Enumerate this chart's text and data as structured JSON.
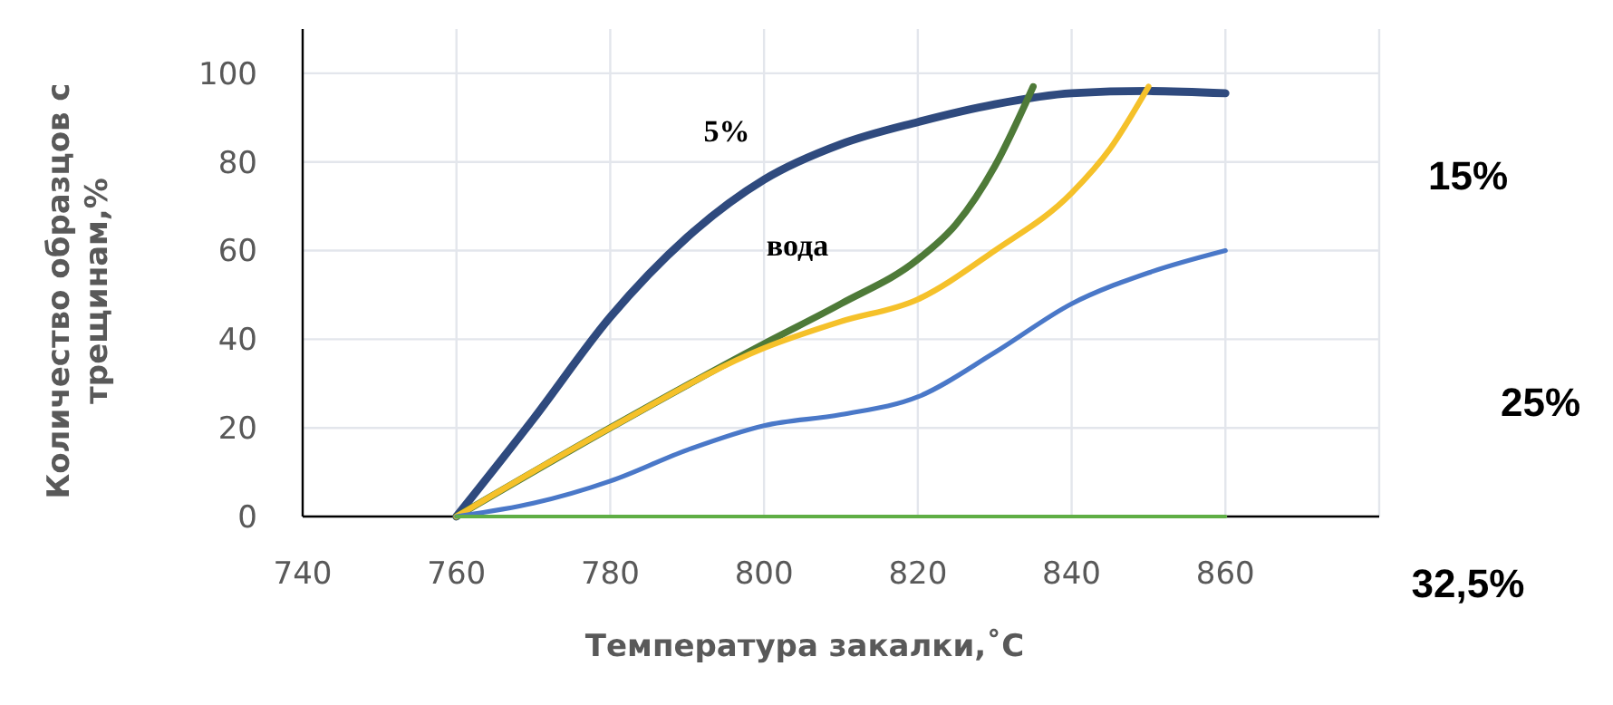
{
  "chart_data": {
    "type": "line",
    "xlabel": "Температура закалки,˚C",
    "ylabel": "Количество образцов с трещинам,%",
    "xlim": [
      740,
      880
    ],
    "ylim": [
      0,
      110
    ],
    "xticks": [
      740,
      760,
      780,
      800,
      820,
      840,
      860,
      {
        "value": 880,
        "label": null
      }
    ],
    "yticks": [
      0,
      20,
      40,
      60,
      80,
      100
    ],
    "grid": true,
    "marker": "none",
    "line_style": "solid",
    "series": [
      {
        "color": "#2f4a7e",
        "x": [
          760,
          770,
          780,
          790,
          800,
          810,
          820,
          830,
          840,
          850,
          860
        ],
        "values": [
          0,
          22,
          45,
          63,
          76,
          84,
          89,
          93,
          95.5,
          96,
          95.5
        ]
      },
      {
        "color": "#4e7a38",
        "x": [
          760,
          780,
          800,
          810,
          820,
          825,
          830,
          835
        ],
        "values": [
          0,
          20,
          39,
          48,
          58,
          66,
          79,
          97
        ]
      },
      {
        "color": "#f5c12a",
        "x": [
          760,
          780,
          800,
          810,
          820,
          830,
          840,
          845,
          850
        ],
        "values": [
          0,
          20,
          38,
          44,
          49,
          60,
          73,
          83,
          97
        ]
      },
      {
        "color": "#4a78c8",
        "x": [
          760,
          770,
          780,
          790,
          800,
          810,
          820,
          830,
          840,
          850,
          860
        ],
        "values": [
          0,
          3,
          8,
          15,
          20.5,
          23,
          27,
          37,
          48,
          55,
          60
        ]
      },
      {
        "color": "#5fae45",
        "x": [
          760,
          860
        ],
        "values": [
          0,
          0
        ]
      }
    ],
    "annotations": [
      "5%",
      "вода",
      "15%",
      "25%",
      "32,5%"
    ]
  }
}
